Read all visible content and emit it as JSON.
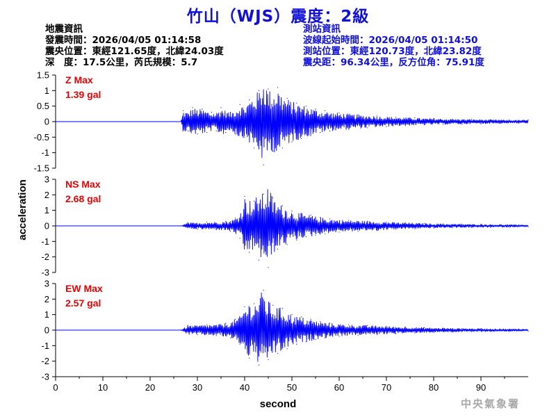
{
  "header": {
    "title": "竹山（WJS）震度：2級"
  },
  "event_info": {
    "heading": "地震資訊",
    "origin_time": "發震時間：2026/04/05 01:14:58",
    "epicenter": "震央位置：東經121.65度，北緯24.03度",
    "depth_magnitude": "深　度：17.5公里，芮氏規模：5.7"
  },
  "station_info": {
    "heading": "測站資訊",
    "wave_start": "波線起始時間：2026/04/05 01:14:50",
    "station_location": "測站位置：東經120.73度，北緯23.82度",
    "distance_azimuth": "震央距：96.34公里，反方位角：75.91度"
  },
  "footer": {
    "agency": "中央氣象署"
  },
  "colors": {
    "trace": "#0000ff",
    "max_label": "#ee0000",
    "title": "#1010d8",
    "axis": "#000000"
  },
  "chart_data": {
    "type": "line",
    "xlabel": "second",
    "ylabel": "acceleration",
    "xlim": [
      0,
      100
    ],
    "x_ticks": [
      0,
      10,
      20,
      30,
      40,
      50,
      60,
      70,
      80,
      90
    ],
    "x_tick_labels": [
      "0",
      "10",
      "20",
      "30",
      "40",
      "50",
      "60",
      "70",
      "80",
      "90"
    ],
    "grid": false,
    "series": [
      {
        "name": "Z",
        "max_label": "Z Max",
        "max_value": "1.39 gal",
        "ylim": [
          -1.5,
          1.5
        ],
        "y_ticks": [
          1.5,
          1,
          0.5,
          0,
          -0.5,
          -1,
          -1.5
        ],
        "y_tick_labels": [
          "1.5",
          "1",
          "0.5",
          "0",
          "-0.5",
          "-1",
          "-1.5"
        ],
        "x": [
          0,
          26.5,
          27,
          28,
          29,
          30,
          31,
          32,
          33,
          34,
          35,
          36,
          37,
          38,
          39,
          40,
          41,
          42,
          43,
          44,
          45,
          46,
          47,
          48,
          49,
          50,
          51,
          52,
          53,
          54,
          55,
          56,
          57,
          58,
          60,
          62,
          64,
          66,
          68,
          70,
          72,
          74,
          76,
          78,
          80,
          82,
          84,
          86,
          88,
          90,
          92,
          94,
          96,
          98,
          100
        ],
        "y": [
          0,
          0,
          0.35,
          -0.3,
          0.45,
          -0.4,
          0.4,
          -0.35,
          0.3,
          -0.3,
          0.45,
          -0.35,
          0.3,
          -0.4,
          0.55,
          -0.5,
          0.7,
          -0.85,
          1.0,
          -1.39,
          1.05,
          -0.95,
          1.1,
          -0.85,
          0.75,
          -0.65,
          0.6,
          -0.55,
          0.5,
          -0.45,
          0.4,
          -0.35,
          0.35,
          -0.3,
          0.28,
          -0.25,
          0.22,
          -0.2,
          0.18,
          -0.16,
          0.14,
          -0.13,
          0.12,
          -0.1,
          0.1,
          -0.09,
          0.08,
          -0.08,
          0.07,
          -0.07,
          0.06,
          -0.06,
          0.05,
          -0.05,
          0.05
        ]
      },
      {
        "name": "NS",
        "max_label": "NS Max",
        "max_value": "2.68 gal",
        "ylim": [
          -3,
          3
        ],
        "y_ticks": [
          3,
          2,
          1,
          0,
          -1,
          -2,
          -3
        ],
        "y_tick_labels": [
          "3",
          "2",
          "1",
          "0",
          "-1",
          "-2",
          "-3"
        ],
        "x": [
          0,
          26.5,
          28,
          30,
          32,
          34,
          36,
          37,
          38,
          39,
          40,
          41,
          42,
          43,
          44,
          45,
          46,
          47,
          48,
          49,
          50,
          51,
          52,
          53,
          54,
          55,
          56,
          57,
          58,
          60,
          62,
          64,
          66,
          68,
          70,
          72,
          74,
          76,
          78,
          80,
          82,
          84,
          86,
          88,
          90,
          92,
          94,
          96,
          98,
          100
        ],
        "y": [
          0,
          0,
          0.2,
          -0.2,
          0.25,
          -0.25,
          0.3,
          -0.35,
          0.5,
          -0.8,
          1.9,
          -1.7,
          1.6,
          -2.2,
          2.05,
          -2.68,
          1.8,
          -1.5,
          1.3,
          -1.2,
          0.95,
          -0.9,
          0.8,
          -0.7,
          0.7,
          -0.6,
          0.55,
          -0.5,
          0.45,
          -0.4,
          0.35,
          -0.35,
          0.3,
          -0.3,
          0.25,
          -0.22,
          0.2,
          -0.18,
          0.16,
          -0.14,
          0.13,
          -0.12,
          0.11,
          -0.1,
          0.1,
          -0.09,
          0.08,
          -0.08,
          0.07,
          -0.07
        ]
      },
      {
        "name": "EW",
        "max_label": "EW Max",
        "max_value": "2.57 gal",
        "ylim": [
          -3,
          3
        ],
        "y_ticks": [
          3,
          2,
          1,
          0,
          -1,
          -2,
          -3
        ],
        "y_tick_labels": [
          "3",
          "2",
          "1",
          "0",
          "-1",
          "-2",
          "-3"
        ],
        "x": [
          0,
          26.5,
          28,
          30,
          32,
          34,
          36,
          37,
          38,
          39,
          40,
          41,
          42,
          43,
          44,
          45,
          46,
          47,
          48,
          49,
          50,
          51,
          52,
          53,
          54,
          55,
          56,
          57,
          58,
          60,
          62,
          64,
          66,
          68,
          70,
          72,
          74,
          76,
          78,
          80,
          82,
          84,
          86,
          88,
          90,
          92,
          94,
          96,
          98,
          100
        ],
        "y": [
          0,
          0,
          0.3,
          -0.3,
          0.35,
          -0.35,
          0.45,
          -0.5,
          0.7,
          -0.9,
          1.5,
          -1.8,
          1.7,
          -2.25,
          2.57,
          -1.9,
          1.6,
          -1.5,
          1.4,
          -1.2,
          1.0,
          -0.9,
          0.85,
          -0.75,
          0.7,
          -0.6,
          0.55,
          -0.5,
          0.45,
          -0.4,
          0.35,
          -0.32,
          0.3,
          -0.28,
          0.25,
          -0.22,
          0.2,
          -0.18,
          0.16,
          -0.14,
          0.13,
          -0.12,
          0.11,
          -0.1,
          0.1,
          -0.09,
          0.08,
          -0.08,
          0.07,
          -0.07
        ]
      }
    ]
  }
}
